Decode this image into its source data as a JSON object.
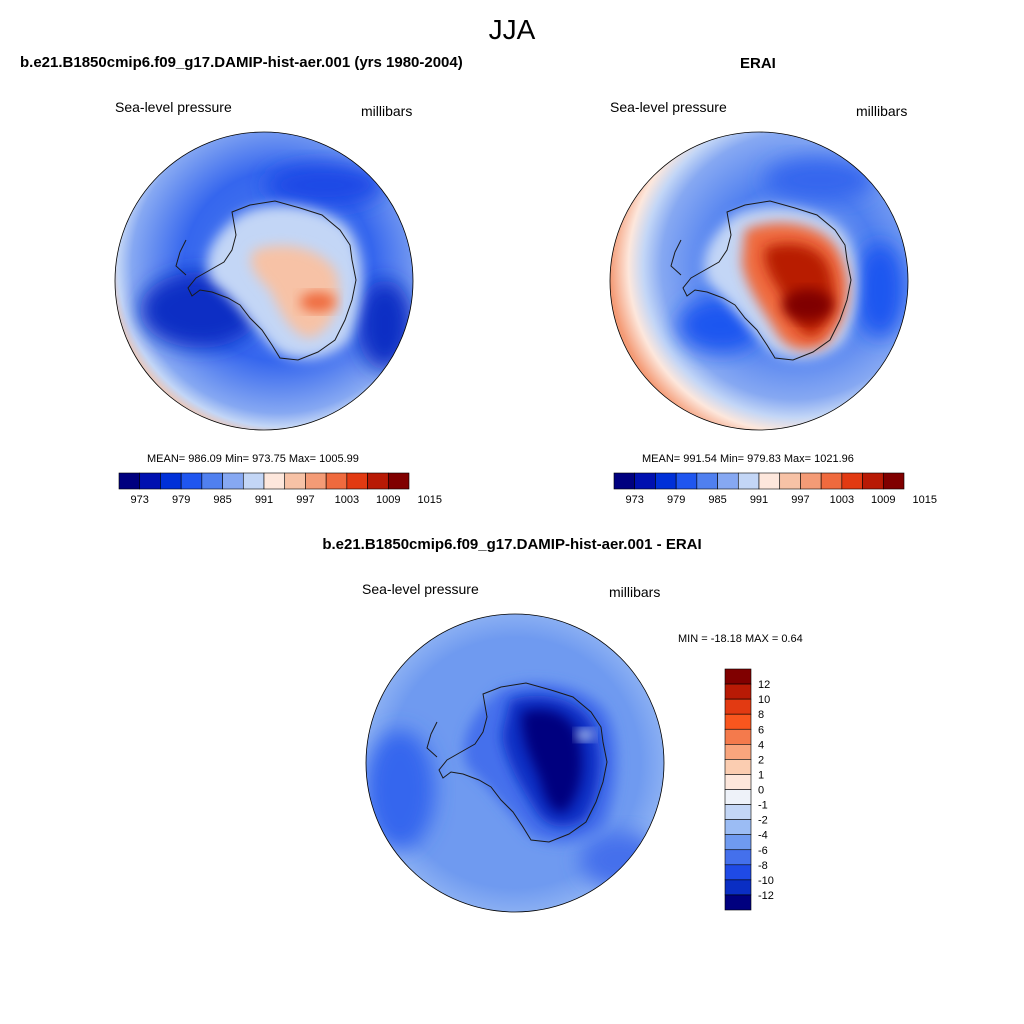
{
  "figure": {
    "title": "JJA",
    "panels": [
      {
        "id": "model",
        "title": "b.e21.B1850cmip6.f09_g17.DAMIP-hist-aer.001 (yrs 1980-2004)",
        "left_label": "Sea-level pressure",
        "right_label": "millibars",
        "stats_text": "MEAN= 986.09  Min= 973.75  Max= 1005.99",
        "stats": {
          "mean": 986.09,
          "min": 973.75,
          "max": 1005.99
        }
      },
      {
        "id": "erai",
        "title": "ERAI",
        "left_label": "Sea-level pressure",
        "right_label": "millibars",
        "stats_text": "MEAN= 991.54  Min= 979.83  Max= 1021.96",
        "stats": {
          "mean": 991.54,
          "min": 979.83,
          "max": 1021.96
        }
      },
      {
        "id": "diff",
        "title": "b.e21.B1850cmip6.f09_g17.DAMIP-hist-aer.001 - ERAI",
        "left_label": "Sea-level pressure",
        "right_label": "millibars",
        "stats_text": "MIN = -18.18 MAX =   0.64",
        "stats": {
          "min": -18.18,
          "max": 0.64
        }
      }
    ],
    "field_colorbar": {
      "colors": [
        "#00007f",
        "#0010b0",
        "#0030d8",
        "#1f56f0",
        "#5080f0",
        "#86a8f2",
        "#c3d6f6",
        "#fde7dc",
        "#f7c2a6",
        "#f49b76",
        "#ef6a3e",
        "#e23a12",
        "#b81a05",
        "#800000"
      ],
      "tick_labels": [
        "973",
        "979",
        "985",
        "991",
        "997",
        "1003",
        "1009",
        "1015"
      ]
    },
    "diff_colorbar": {
      "colors": [
        "#800000",
        "#b81a05",
        "#e23a12",
        "#f9561e",
        "#f47a4c",
        "#f9a57d",
        "#fbcdb1",
        "#fde7dc",
        "#eef2f9",
        "#c3d6f6",
        "#9bbcf4",
        "#6f9af0",
        "#4470ec",
        "#1f4ae6",
        "#0a2ec4",
        "#00007f"
      ],
      "tick_labels": [
        "12",
        "10",
        "8",
        "6",
        "4",
        "2",
        "1",
        "0",
        "-1",
        "-2",
        "-4",
        "-6",
        "-8",
        "-10",
        "-12"
      ]
    }
  }
}
